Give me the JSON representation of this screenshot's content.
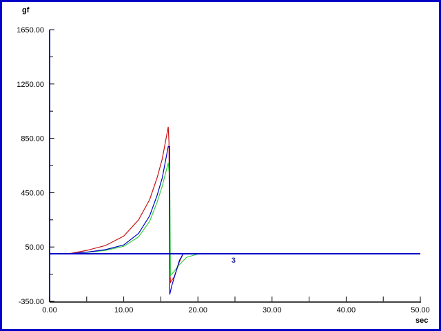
{
  "chart_data": {
    "type": "line",
    "ylabel": "gf",
    "xlabel": "sec",
    "xlim": [
      0,
      50
    ],
    "ylim": [
      -350,
      1650
    ],
    "x_ticks": [
      "0.00",
      "10.00",
      "20.00",
      "30.00",
      "40.00",
      "50.00"
    ],
    "y_ticks": [
      "-350.00",
      "50.00",
      "450.00",
      "850.00",
      "1250.00",
      "1650.00"
    ],
    "baseline": {
      "y": 0,
      "color": "#0000c8"
    },
    "annotation": {
      "text": "3",
      "x": 24.8,
      "y": -45,
      "color": "#2a2aa0"
    },
    "series": [
      {
        "color": "#c81010",
        "points": [
          [
            2.5,
            0
          ],
          [
            5,
            25
          ],
          [
            7.5,
            60
          ],
          [
            10,
            130
          ],
          [
            12,
            250
          ],
          [
            13.5,
            400
          ],
          [
            14.5,
            560
          ],
          [
            15.2,
            700
          ],
          [
            16,
            935
          ],
          [
            16.1,
            820
          ],
          [
            16.2,
            -100
          ],
          [
            16.3,
            -210
          ],
          [
            16.8,
            -170
          ],
          [
            17.5,
            -60
          ],
          [
            18,
            0
          ],
          [
            20,
            0
          ]
        ]
      },
      {
        "color": "#30d040",
        "points": [
          [
            2.5,
            0
          ],
          [
            5,
            10
          ],
          [
            7.5,
            25
          ],
          [
            10,
            55
          ],
          [
            12,
            125
          ],
          [
            13.5,
            240
          ],
          [
            14.5,
            380
          ],
          [
            15.2,
            500
          ],
          [
            16,
            670
          ],
          [
            16.2,
            560
          ],
          [
            16.3,
            -160
          ],
          [
            16.8,
            -130
          ],
          [
            17.5,
            -80
          ],
          [
            18.5,
            -25
          ],
          [
            20,
            -2
          ],
          [
            21,
            0
          ]
        ]
      },
      {
        "color": "#0000c8",
        "points": [
          [
            2.5,
            0
          ],
          [
            5,
            12
          ],
          [
            7.5,
            30
          ],
          [
            10,
            65
          ],
          [
            12,
            150
          ],
          [
            13.5,
            280
          ],
          [
            14.5,
            430
          ],
          [
            15.2,
            560
          ],
          [
            16,
            790
          ],
          [
            16.2,
            790
          ],
          [
            16.2,
            -300
          ],
          [
            16.5,
            -230
          ],
          [
            17,
            -140
          ],
          [
            17.5,
            -50
          ],
          [
            18,
            0
          ],
          [
            20,
            0
          ]
        ]
      }
    ]
  }
}
